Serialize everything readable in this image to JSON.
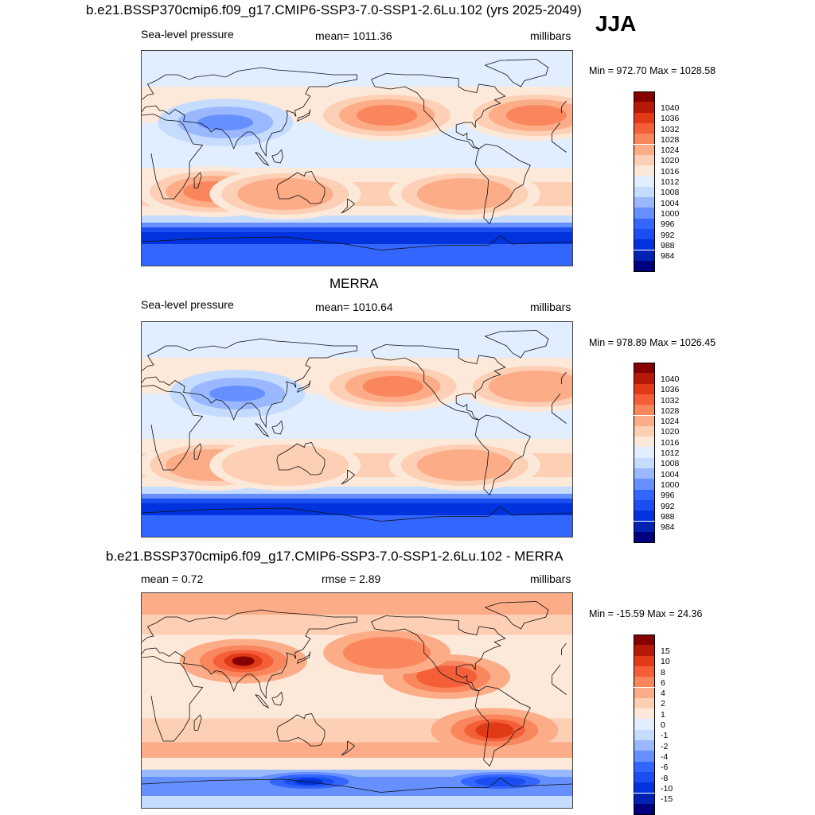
{
  "header": {
    "title": "b.e21.BSSP370cmip6.f09_g17.CMIP6-SSP3-7.0-SSP1-2.6Lu.102 (yrs 2025-2049)",
    "season": "JJA"
  },
  "colors": {
    "levels_pressure": [
      "#00007f",
      "#0022b3",
      "#0033dd",
      "#1a4ef0",
      "#3366ff",
      "#6690ff",
      "#99b8ff",
      "#c6dcff",
      "#e0eeff",
      "#fde9da",
      "#fdcfb4",
      "#fcac86",
      "#f9865d",
      "#f45f39",
      "#e03a17",
      "#b51a08",
      "#870000"
    ],
    "levels_diff": [
      "#00007f",
      "#0022b3",
      "#0033dd",
      "#1a4ef0",
      "#3366ff",
      "#6690ff",
      "#99b8ff",
      "#c6dcff",
      "#e0eeff",
      "#fde9da",
      "#fdcfb4",
      "#fcac86",
      "#f9865d",
      "#f45f39",
      "#e03a17",
      "#b51a08",
      "#870000"
    ],
    "coast": "#111111"
  },
  "chart_data": [
    {
      "type": "heatmap",
      "title": "b.e21.BSSP370cmip6.f09_g17.CMIP6-SSP3-7.0-SSP1-2.6Lu.102 (yrs 2025-2049)",
      "left_label": "Sea-level pressure",
      "center_label": "mean= 1011.36",
      "units": "millibars",
      "minmax": "Min = 972.70 Max = 1028.58",
      "colorbar_ticks": [
        "1040",
        "1036",
        "1032",
        "1028",
        "1024",
        "1020",
        "1016",
        "1012",
        "1008",
        "1004",
        "1000",
        "996",
        "992",
        "988",
        "984"
      ],
      "highs": [
        {
          "lon": 205,
          "lat": 36,
          "value": 1026
        },
        {
          "lon": 330,
          "lat": 36,
          "value": 1024
        },
        {
          "lon": 60,
          "lat": -28,
          "value": 1024
        },
        {
          "lon": 270,
          "lat": -30,
          "value": 1022
        },
        {
          "lon": 120,
          "lat": -30,
          "value": 1020
        }
      ],
      "lows": [
        {
          "lon": 70,
          "lat": 30,
          "value": 1000
        }
      ],
      "southern_trough": {
        "lat": -65,
        "value": 984
      }
    },
    {
      "type": "heatmap",
      "title": "MERRA",
      "left_label": "Sea-level pressure",
      "center_label": "mean= 1010.64",
      "units": "millibars",
      "minmax": "Min = 978.89 Max = 1026.45",
      "colorbar_ticks": [
        "1040",
        "1036",
        "1032",
        "1028",
        "1024",
        "1020",
        "1016",
        "1012",
        "1008",
        "1004",
        "1000",
        "996",
        "992",
        "988",
        "984"
      ],
      "highs": [
        {
          "lon": 210,
          "lat": 36,
          "value": 1024
        },
        {
          "lon": 330,
          "lat": 36,
          "value": 1022
        },
        {
          "lon": 60,
          "lat": -30,
          "value": 1022
        },
        {
          "lon": 270,
          "lat": -30,
          "value": 1020
        },
        {
          "lon": 120,
          "lat": -30,
          "value": 1018
        }
      ],
      "lows": [
        {
          "lon": 80,
          "lat": 30,
          "value": 1000
        }
      ],
      "southern_trough": {
        "lat": -65,
        "value": 986
      }
    },
    {
      "type": "heatmap",
      "title": "b.e21.BSSP370cmip6.f09_g17.CMIP6-SSP3-7.0-SSP1-2.6Lu.102 - MERRA",
      "left_label": "mean =   0.72",
      "center_label": "rmse =   2.89",
      "units": "millibars",
      "minmax": "Min = -15.59 Max =  24.36",
      "colorbar_ticks": [
        "15",
        "10",
        "8",
        "6",
        "4",
        "2",
        "1",
        "0",
        "-1",
        "-2",
        "-4",
        "-6",
        "-8",
        "-10",
        "-15"
      ],
      "highs": [
        {
          "lon": 85,
          "lat": 33,
          "value": 15
        },
        {
          "lon": 295,
          "lat": -25,
          "value": 8
        },
        {
          "lon": 255,
          "lat": 20,
          "value": 6
        },
        {
          "lon": 205,
          "lat": 40,
          "value": 4
        }
      ],
      "lows": [
        {
          "lon": 140,
          "lat": -68,
          "value": -10
        },
        {
          "lon": 300,
          "lat": -68,
          "value": -8
        }
      ]
    }
  ]
}
